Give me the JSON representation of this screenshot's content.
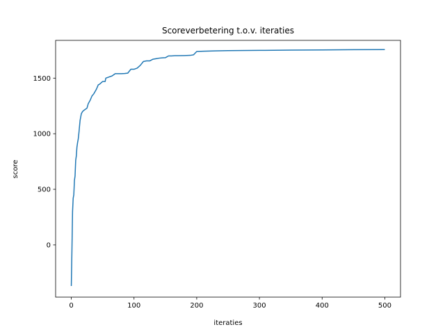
{
  "chart_data": {
    "type": "line",
    "title": "Scoreverbetering t.o.v. iteraties",
    "xlabel": "iteraties",
    "ylabel": "score",
    "xlim": [
      -25,
      525
    ],
    "ylim": [
      -470,
      1840
    ],
    "xticks": [
      0,
      100,
      200,
      300,
      400,
      500
    ],
    "yticks": [
      0,
      500,
      1000,
      1500
    ],
    "grid": false,
    "series": [
      {
        "color": "#1f77b4",
        "x": [
          0,
          1,
          2,
          3,
          4,
          5,
          6,
          7,
          8,
          9,
          10,
          11,
          12,
          13,
          14,
          15,
          16,
          18,
          20,
          25,
          27,
          30,
          33,
          36,
          40,
          43,
          45,
          48,
          50,
          54,
          55,
          60,
          65,
          70,
          75,
          80,
          85,
          90,
          95,
          100,
          105,
          110,
          115,
          120,
          125,
          130,
          135,
          140,
          145,
          150,
          155,
          160,
          165,
          170,
          180,
          190,
          195,
          200,
          210,
          220,
          230,
          250,
          300,
          350,
          400,
          450,
          500
        ],
        "y": [
          -370,
          -50,
          300,
          420,
          450,
          580,
          620,
          760,
          800,
          880,
          920,
          950,
          1000,
          1060,
          1120,
          1150,
          1180,
          1200,
          1210,
          1230,
          1270,
          1300,
          1340,
          1360,
          1400,
          1440,
          1445,
          1460,
          1470,
          1470,
          1500,
          1510,
          1520,
          1540,
          1540,
          1540,
          1542,
          1545,
          1580,
          1580,
          1590,
          1615,
          1650,
          1655,
          1655,
          1670,
          1675,
          1680,
          1683,
          1684,
          1700,
          1700,
          1702,
          1702,
          1703,
          1705,
          1710,
          1740,
          1742,
          1744,
          1745,
          1748,
          1750,
          1752,
          1754,
          1756,
          1757
        ]
      }
    ]
  }
}
